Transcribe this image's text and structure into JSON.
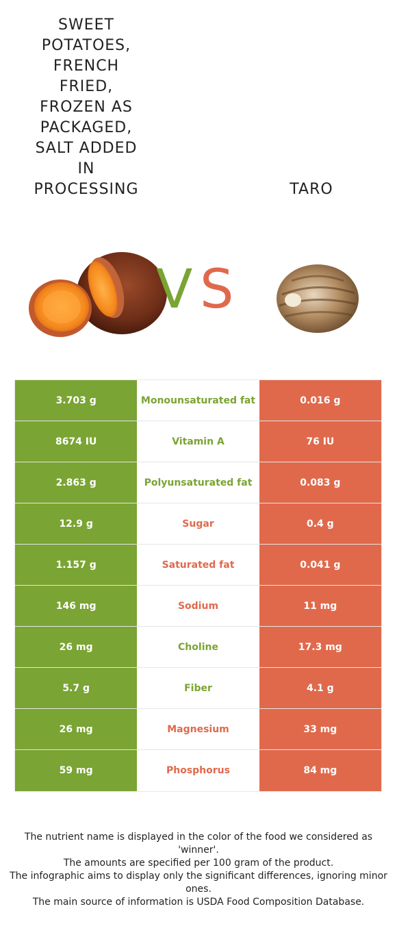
{
  "header": {
    "left_food": "SWEET POTATOES, FRENCH FRIED, FROZEN AS PACKAGED, SALT ADDED IN PROCESSING",
    "left_food_lines": [
      "SWEET",
      "POTATOES,",
      "FRENCH",
      "FRIED,",
      "FROZEN AS",
      "PACKAGED,",
      "SALT ADDED",
      "IN",
      "PROCESSING"
    ],
    "right_food": "TARO",
    "vs_v": "V",
    "vs_s": "S"
  },
  "colors": {
    "left": "#7aa433",
    "right": "#e0694c"
  },
  "rows": [
    {
      "left": "3.703 g",
      "nutrient": "Monounsaturated fat",
      "right": "0.016 g",
      "winner": "left"
    },
    {
      "left": "8674 IU",
      "nutrient": "Vitamin A",
      "right": "76 IU",
      "winner": "left"
    },
    {
      "left": "2.863 g",
      "nutrient": "Polyunsaturated fat",
      "right": "0.083 g",
      "winner": "left"
    },
    {
      "left": "12.9 g",
      "nutrient": "Sugar",
      "right": "0.4 g",
      "winner": "right"
    },
    {
      "left": "1.157 g",
      "nutrient": "Saturated fat",
      "right": "0.041 g",
      "winner": "right"
    },
    {
      "left": "146 mg",
      "nutrient": "Sodium",
      "right": "11 mg",
      "winner": "right"
    },
    {
      "left": "26 mg",
      "nutrient": "Choline",
      "right": "17.3 mg",
      "winner": "left"
    },
    {
      "left": "5.7 g",
      "nutrient": "Fiber",
      "right": "4.1 g",
      "winner": "left"
    },
    {
      "left": "26 mg",
      "nutrient": "Magnesium",
      "right": "33 mg",
      "winner": "right"
    },
    {
      "left": "59 mg",
      "nutrient": "Phosphorus",
      "right": "84 mg",
      "winner": "right"
    }
  ],
  "footer": {
    "line1": "The nutrient name is displayed in the color of the food we considered as 'winner'.",
    "line2": "The amounts are specified per 100 gram of the product.",
    "line3": "The infographic aims to display only the significant differences, ignoring minor ones.",
    "line4": "The main source of information is USDA Food Composition Database."
  }
}
